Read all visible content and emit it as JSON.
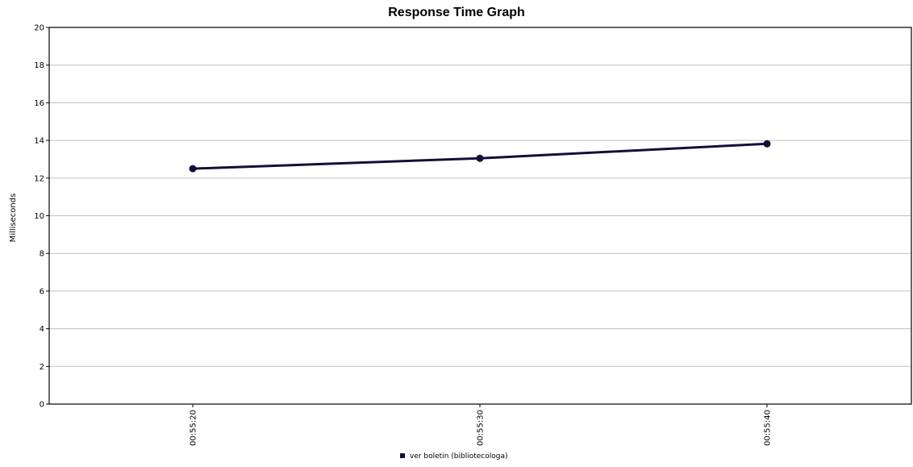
{
  "chart_data": {
    "type": "line",
    "title": "Response Time Graph",
    "xlabel": "",
    "ylabel": "Milliseconds",
    "x": [
      "00:55:20",
      "00:55:30",
      "00:55:40"
    ],
    "series": [
      {
        "name": "ver boletin (bibliotecologa)",
        "values": [
          12.5,
          13.05,
          13.82
        ],
        "color": "#10103a"
      }
    ],
    "ylim": [
      0,
      20
    ],
    "yticks": [
      0,
      2,
      4,
      6,
      8,
      10,
      12,
      14,
      16,
      18,
      20
    ],
    "grid": true,
    "legend_position": "bottom"
  }
}
